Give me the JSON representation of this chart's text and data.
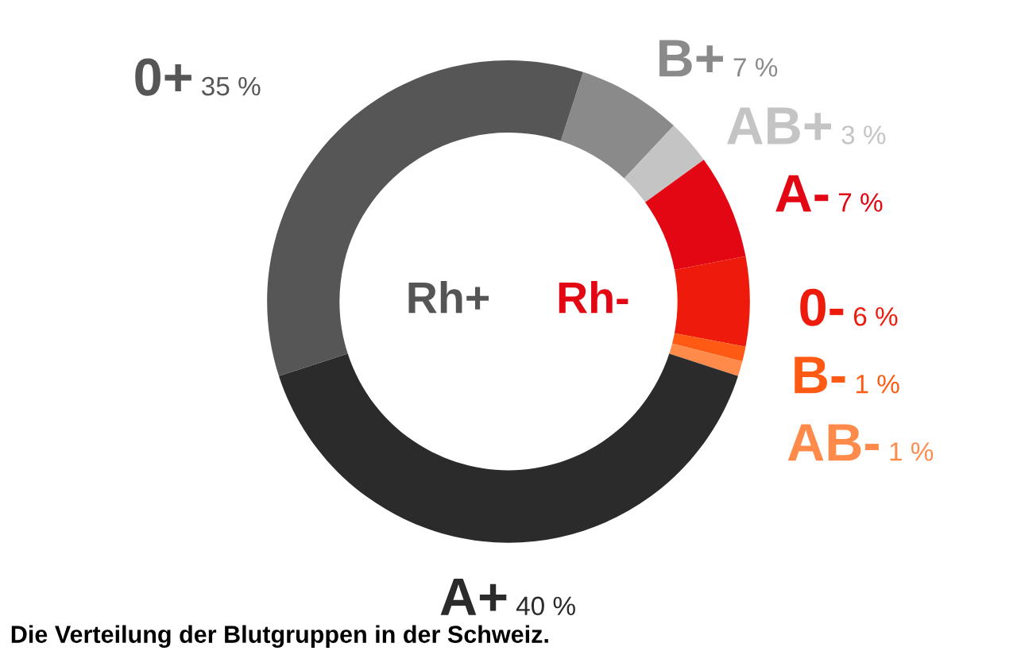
{
  "chart_data": {
    "type": "donut",
    "categories": [
      "B+",
      "AB+",
      "A-",
      "0-",
      "B-",
      "AB-",
      "A+",
      "0+"
    ],
    "values": [
      7,
      3,
      7,
      6,
      1,
      1,
      40,
      35
    ],
    "colors": [
      "#8a8a8a",
      "#c4c4c4",
      "#e30613",
      "#ee1a0c",
      "#ff5a14",
      "#ff8a4a",
      "#2b2b2b",
      "#565656"
    ],
    "value_labels": [
      "7 %",
      "3 %",
      "7 %",
      "6 %",
      "1 %",
      "1 %",
      "40 %",
      "35 %"
    ],
    "annotations": [
      "Rh+",
      "Rh-",
      "Die Verteilung der Blutgruppen in der Schweiz."
    ]
  }
}
